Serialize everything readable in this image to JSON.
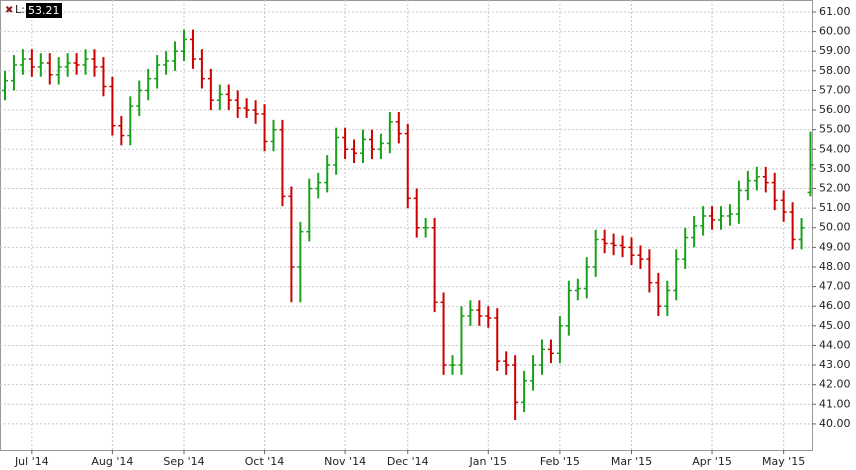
{
  "chart_data": {
    "type": "ohlc",
    "last_price_prefix": "L:",
    "last_price": 53.21,
    "up_color": "#1aa01a",
    "down_color": "#cc0000",
    "grid": true,
    "ylim": [
      38.67,
      61.61
    ],
    "yticks": [
      {
        "value": 40,
        "label": "40.00"
      },
      {
        "value": 41,
        "label": "41.00"
      },
      {
        "value": 42,
        "label": "42.00"
      },
      {
        "value": 43,
        "label": "43.00"
      },
      {
        "value": 44,
        "label": "44.00"
      },
      {
        "value": 45,
        "label": "45.00"
      },
      {
        "value": 46,
        "label": "46.00"
      },
      {
        "value": 47,
        "label": "47.00"
      },
      {
        "value": 48,
        "label": "48.00"
      },
      {
        "value": 49,
        "label": "49.00"
      },
      {
        "value": 50,
        "label": "50.00"
      },
      {
        "value": 51,
        "label": "51.00"
      },
      {
        "value": 52,
        "label": "52.00"
      },
      {
        "value": 53,
        "label": "53.00"
      },
      {
        "value": 54,
        "label": "54.00"
      },
      {
        "value": 55,
        "label": "55.00"
      },
      {
        "value": 56,
        "label": "56.00"
      },
      {
        "value": 57,
        "label": "57.00"
      },
      {
        "value": 58,
        "label": "58.00"
      },
      {
        "value": 59,
        "label": "59.00"
      },
      {
        "value": 60,
        "label": "60.00"
      },
      {
        "value": 61,
        "label": "61.00"
      }
    ],
    "xticks": [
      {
        "value": 3,
        "label": "Jul '14"
      },
      {
        "value": 12,
        "label": "Aug '14"
      },
      {
        "value": 20,
        "label": "Sep '14"
      },
      {
        "value": 29,
        "label": "Oct '14"
      },
      {
        "value": 38,
        "label": "Nov '14"
      },
      {
        "value": 45,
        "label": "Dec '14"
      },
      {
        "value": 54,
        "label": "Jan '15"
      },
      {
        "value": 62,
        "label": "Feb '15"
      },
      {
        "value": 70,
        "label": "Mar '15"
      },
      {
        "value": 79,
        "label": "Apr '15"
      },
      {
        "value": 87,
        "label": "May '15"
      }
    ],
    "open": [
      57.0,
      57.5,
      58.3,
      58.6,
      58.2,
      58.4,
      57.8,
      58.2,
      58.4,
      58.3,
      58.6,
      58.2,
      57.2,
      55.2,
      54.7,
      56.2,
      57.0,
      57.6,
      58.3,
      58.5,
      59.0,
      59.6,
      58.6,
      57.6,
      56.5,
      56.8,
      56.5,
      56.1,
      56.0,
      55.8,
      54.4,
      55.0,
      51.6,
      48.0,
      49.8,
      52.0,
      52.3,
      53.2,
      54.6,
      54.0,
      53.8,
      54.5,
      54.0,
      54.3,
      55.4,
      54.8,
      51.5,
      50.0,
      50.0,
      46.2,
      43.0,
      43.0,
      45.5,
      45.8,
      45.5,
      45.4,
      43.2,
      43.0,
      41.1,
      42.2,
      43.0,
      43.8,
      43.6,
      45.0,
      46.8,
      46.9,
      48.0,
      49.4,
      49.2,
      49.1,
      49.0,
      48.6,
      48.4,
      47.2,
      46.0,
      46.8,
      48.4,
      49.5,
      50.1,
      50.6,
      50.4,
      50.6,
      50.7,
      51.9,
      52.4,
      52.6,
      52.3,
      51.4,
      50.8,
      49.4,
      51.8
    ],
    "high": [
      58.0,
      58.8,
      59.1,
      59.1,
      58.9,
      58.9,
      58.7,
      58.9,
      58.9,
      59.1,
      59.1,
      58.7,
      57.7,
      55.7,
      56.7,
      57.5,
      58.1,
      58.8,
      59.0,
      59.5,
      60.1,
      60.1,
      59.1,
      58.1,
      57.3,
      57.3,
      57.0,
      56.6,
      56.5,
      56.3,
      55.5,
      55.5,
      52.1,
      50.3,
      52.5,
      52.8,
      53.7,
      55.1,
      55.1,
      54.5,
      55.0,
      55.0,
      54.8,
      55.9,
      55.9,
      55.3,
      52.0,
      50.5,
      50.5,
      46.7,
      43.5,
      46.0,
      46.3,
      46.3,
      46.0,
      45.9,
      43.7,
      43.5,
      42.7,
      43.5,
      44.3,
      44.3,
      45.5,
      47.3,
      47.4,
      48.5,
      49.9,
      49.9,
      49.7,
      49.6,
      49.5,
      49.1,
      48.9,
      47.7,
      47.3,
      48.9,
      50.0,
      50.6,
      51.1,
      51.1,
      51.1,
      51.2,
      52.4,
      52.9,
      53.1,
      53.1,
      52.8,
      51.9,
      51.3,
      50.5,
      54.9
    ],
    "low": [
      56.5,
      57.0,
      57.8,
      57.7,
      57.7,
      57.3,
      57.3,
      57.7,
      57.8,
      57.8,
      57.7,
      56.7,
      54.7,
      54.2,
      54.2,
      55.7,
      56.5,
      57.1,
      57.8,
      58.0,
      58.5,
      58.1,
      57.1,
      56.0,
      56.0,
      56.0,
      55.6,
      55.6,
      55.3,
      53.9,
      53.9,
      51.1,
      46.2,
      46.2,
      49.3,
      51.5,
      51.8,
      52.7,
      53.5,
      53.3,
      53.3,
      53.5,
      53.5,
      53.8,
      54.3,
      51.0,
      49.5,
      49.5,
      45.7,
      42.5,
      42.5,
      42.5,
      45.0,
      45.0,
      44.9,
      42.7,
      42.5,
      40.2,
      40.6,
      41.7,
      42.5,
      43.1,
      43.1,
      44.5,
      46.3,
      46.4,
      47.5,
      48.7,
      48.6,
      48.5,
      48.1,
      47.9,
      46.7,
      45.5,
      45.5,
      46.3,
      47.9,
      49.0,
      49.6,
      49.9,
      49.9,
      50.1,
      50.2,
      51.4,
      51.9,
      51.8,
      50.9,
      50.3,
      48.9,
      48.9,
      51.6
    ],
    "close": [
      57.5,
      58.3,
      58.6,
      58.2,
      58.4,
      57.8,
      58.2,
      58.4,
      58.3,
      58.6,
      58.2,
      57.2,
      55.2,
      54.7,
      56.2,
      57.0,
      57.6,
      58.3,
      58.5,
      59.0,
      59.6,
      58.6,
      57.6,
      56.5,
      56.8,
      56.5,
      56.1,
      56.0,
      55.8,
      54.4,
      55.0,
      51.6,
      48.0,
      49.8,
      52.0,
      52.3,
      53.2,
      54.6,
      54.0,
      53.8,
      54.5,
      54.0,
      54.3,
      55.4,
      54.8,
      51.5,
      50.0,
      50.0,
      46.2,
      43.0,
      43.0,
      45.5,
      45.8,
      45.5,
      45.4,
      43.2,
      43.0,
      41.1,
      42.2,
      43.0,
      43.8,
      43.6,
      45.0,
      46.8,
      46.9,
      48.0,
      49.4,
      49.2,
      49.1,
      49.0,
      48.6,
      48.4,
      47.2,
      46.0,
      46.8,
      48.4,
      49.5,
      50.1,
      50.6,
      50.4,
      50.6,
      50.7,
      51.9,
      52.4,
      52.6,
      52.3,
      51.4,
      50.8,
      49.4,
      50.0,
      53.2
    ]
  }
}
